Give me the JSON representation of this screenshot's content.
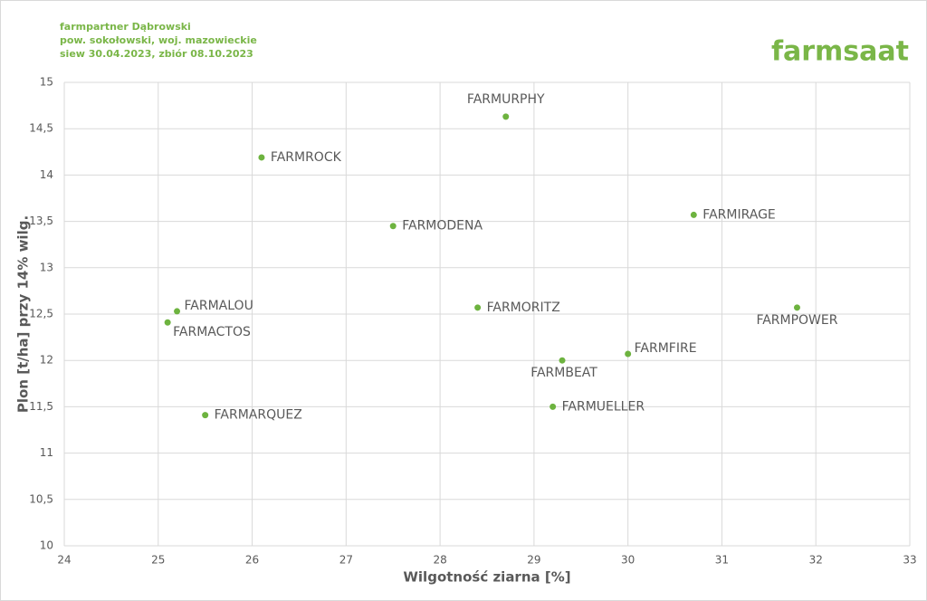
{
  "logo": "farmsaat",
  "chart_data": {
    "type": "scatter",
    "title": "farmpartner Dąbrowski",
    "subtitle": [
      "pow. sokołowski, woj. mazowieckie",
      "siew 30.04.2023, zbiór 08.10.2023"
    ],
    "x_label": "Wilgotność ziarna [%]",
    "y_label": "Plon [t/ha] przy 14% wilg.",
    "color": "#6db33f",
    "grid": true,
    "labels": [
      "FARMURPHY",
      "FARMROCK",
      "FARMODENA",
      "FARMIRAGE",
      "FARMALOU",
      "FARMACTOS",
      "FARMORITZ",
      "FARMPOWER",
      "FARMFIRE",
      "FARMBEAT",
      "FARMUELLER",
      "FARMARQUEZ"
    ],
    "x": [
      28.7,
      26.1,
      27.5,
      30.7,
      25.2,
      25.1,
      28.4,
      31.8,
      30.0,
      29.3,
      29.2,
      25.5
    ],
    "values": [
      14.63,
      14.19,
      13.45,
      13.57,
      12.53,
      12.41,
      12.57,
      12.57,
      12.07,
      12.0,
      11.5,
      11.41
    ],
    "xlim": [
      24,
      33
    ],
    "xticks": [
      24,
      25,
      26,
      27,
      28,
      29,
      30,
      31,
      32,
      33
    ],
    "ylim": [
      10,
      15
    ],
    "yticks": [
      10,
      {
        "value": 10.5,
        "label": "10,5"
      },
      11,
      {
        "value": 11.5,
        "label": "11,5"
      },
      12,
      {
        "value": 12.5,
        "label": "12,5"
      },
      13,
      {
        "value": 13.5,
        "label": "13,5"
      },
      14,
      {
        "value": 14.5,
        "label": "14,5"
      },
      15
    ]
  }
}
